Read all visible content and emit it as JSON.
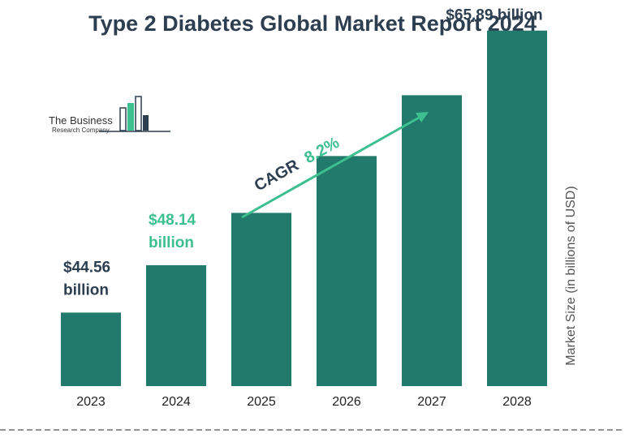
{
  "logo": {
    "line1": "The Business",
    "line2": "Research Company"
  },
  "colors": {
    "bar": "#217a6b",
    "title": "#2c3e50",
    "highlight": "#3dbf8f",
    "dark_label": "#2c3e50"
  },
  "chart_data": {
    "type": "bar",
    "title": "Type 2 Diabetes Global Market Report 2024",
    "xlabel": "",
    "ylabel": "Market Size (in billions of USD)",
    "categories": [
      "2023",
      "2024",
      "2025",
      "2026",
      "2027",
      "2028"
    ],
    "values": [
      44.56,
      48.14,
      52.1,
      56.4,
      61.0,
      65.89
    ],
    "value_labels": [
      {
        "index": 0,
        "line1": "$44.56",
        "line2": "billion",
        "style": "dark"
      },
      {
        "index": 1,
        "line1": "$48.14",
        "line2": "billion",
        "style": "highlight"
      },
      {
        "index": 5,
        "line1": "$65.89 billion",
        "line2": "",
        "style": "dark"
      }
    ],
    "annotation": {
      "label": "CAGR",
      "value": "8.2%"
    },
    "grid": false,
    "legend": "none"
  }
}
